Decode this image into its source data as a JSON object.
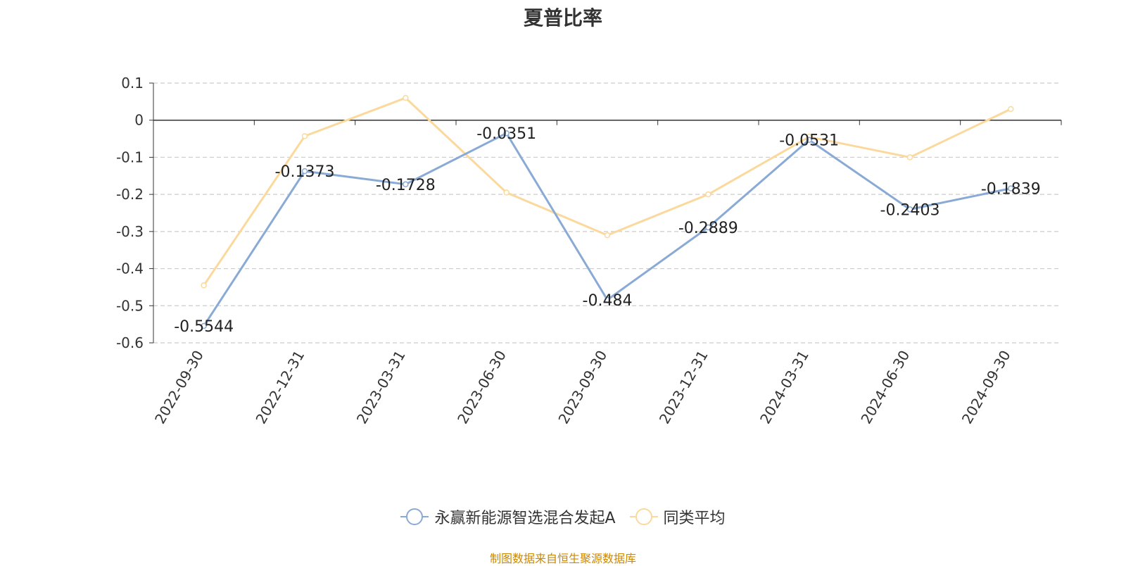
{
  "chart_data": {
    "type": "line",
    "title": "夏普比率",
    "categories": [
      "2022-09-30",
      "2022-12-31",
      "2023-03-31",
      "2023-06-30",
      "2023-09-30",
      "2023-12-31",
      "2024-03-31",
      "2024-06-30",
      "2024-09-30"
    ],
    "series": [
      {
        "name": "永赢新能源智选混合发起A",
        "color": "#8aaad6",
        "values": [
          -0.5544,
          -0.1373,
          -0.1728,
          -0.0351,
          -0.484,
          -0.2889,
          -0.0531,
          -0.2403,
          -0.1839
        ],
        "labels": [
          "-0.5544",
          "-0.1373",
          "-0.1728",
          "-0.0351",
          "-0.484",
          "-0.2889",
          "-0.0531",
          "-0.2403",
          "-0.1839"
        ]
      },
      {
        "name": "同类平均",
        "color": "#fbd99c",
        "values": [
          -0.445,
          -0.043,
          0.06,
          -0.195,
          -0.31,
          -0.2,
          -0.045,
          -0.1,
          0.03
        ]
      }
    ],
    "ylim": [
      -0.6,
      0.1
    ],
    "yticks": [
      "0.1",
      "0",
      "-0.1",
      "-0.2",
      "-0.3",
      "-0.4",
      "-0.5",
      "-0.6"
    ],
    "grid": true,
    "legend_position": "bottom"
  },
  "source_note": "制图数据来自恒生聚源数据库"
}
